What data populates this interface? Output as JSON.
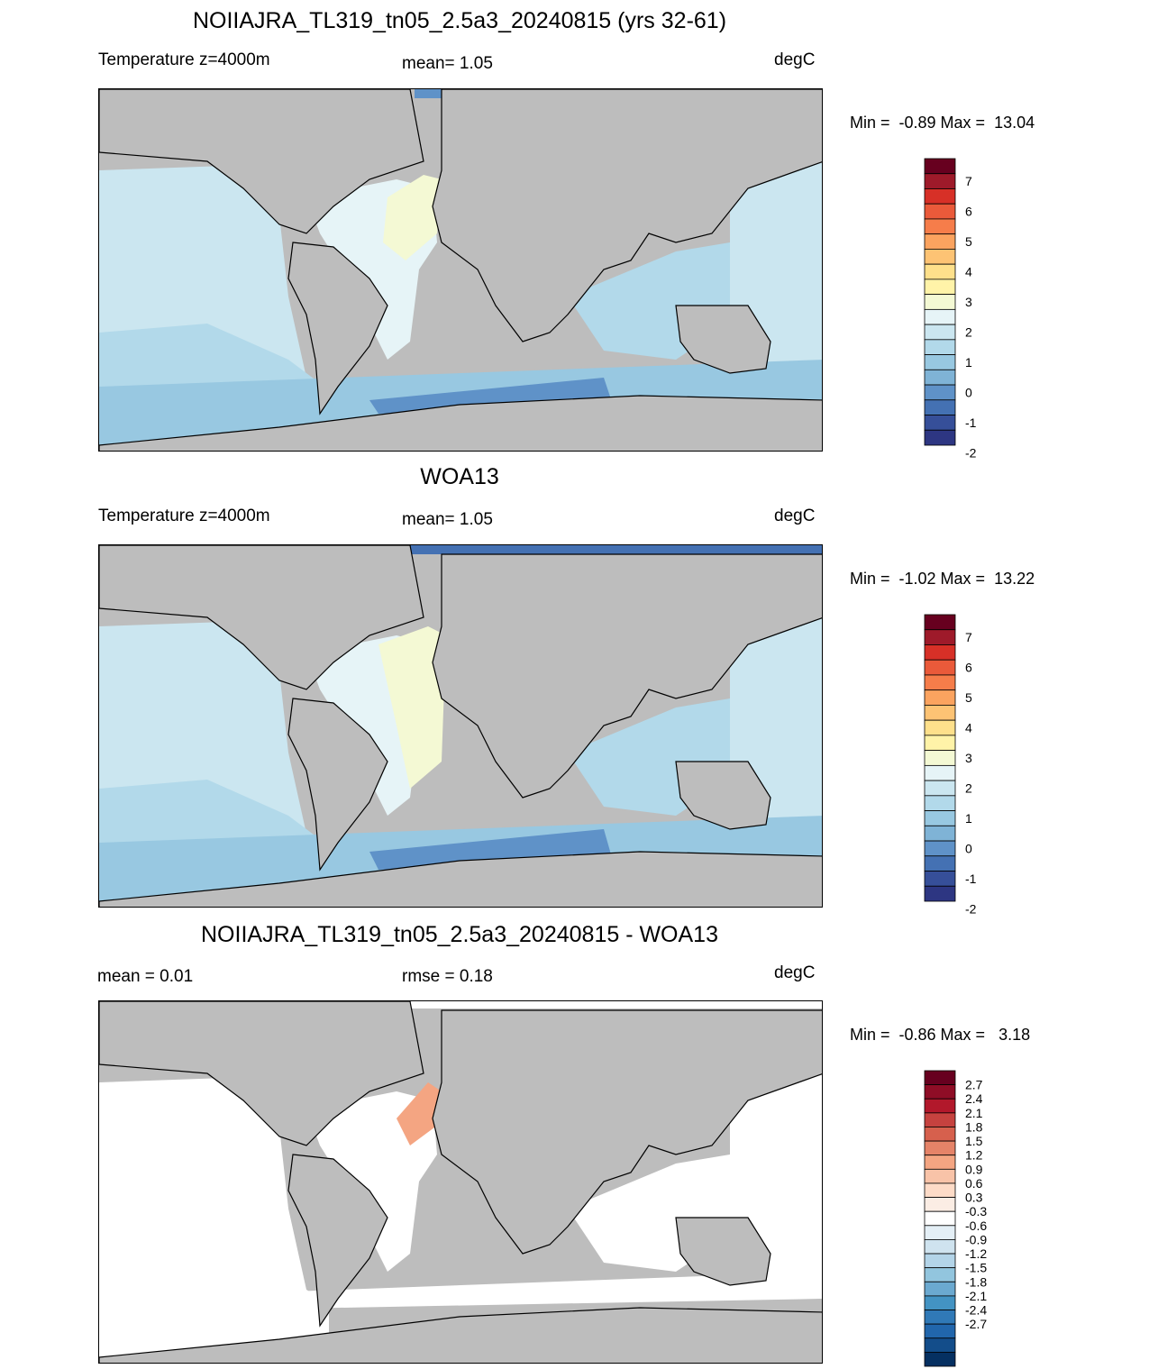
{
  "panels": [
    {
      "title": "NOIIAJRA_TL319_tn05_2.5a3_20240815 (yrs 32-61)",
      "left_label": "Temperature z=4000m",
      "center_label": "mean=   1.05",
      "units": "degC",
      "minmax": "Min =  -0.89 Max =  13.04",
      "colorbar": {
        "labels": [
          "7",
          "6",
          "5",
          "4",
          "3",
          "2",
          "1",
          "0",
          "-1",
          "-2"
        ],
        "colors": [
          "#67001f",
          "#9e1a2a",
          "#d73027",
          "#ea5a3a",
          "#f67d4a",
          "#fba35f",
          "#fdc374",
          "#fee08b",
          "#fff3a8",
          "#f4f9d4",
          "#e6f4f7",
          "#cbe6f0",
          "#b2d9ea",
          "#98c8e1",
          "#7fb3d6",
          "#5f92c8",
          "#4471b3",
          "#364f99",
          "#2d3682"
        ]
      }
    },
    {
      "title": "WOA13",
      "left_label": "Temperature z=4000m",
      "center_label": "mean=   1.05",
      "units": "degC",
      "minmax": "Min =  -1.02 Max =  13.22",
      "colorbar": {
        "labels": [
          "7",
          "6",
          "5",
          "4",
          "3",
          "2",
          "1",
          "0",
          "-1",
          "-2"
        ],
        "colors": [
          "#67001f",
          "#9e1a2a",
          "#d73027",
          "#ea5a3a",
          "#f67d4a",
          "#fba35f",
          "#fdc374",
          "#fee08b",
          "#fff3a8",
          "#f4f9d4",
          "#e6f4f7",
          "#cbe6f0",
          "#b2d9ea",
          "#98c8e1",
          "#7fb3d6",
          "#5f92c8",
          "#4471b3",
          "#364f99",
          "#2d3682"
        ]
      }
    },
    {
      "title": "NOIIAJRA_TL319_tn05_2.5a3_20240815 - WOA13",
      "left_label": "mean =   0.01",
      "center_label": "rmse =   0.18",
      "units": "degC",
      "minmax": "Min =  -0.86 Max =   3.18",
      "colorbar": {
        "labels": [
          "2.7",
          "2.4",
          "2.1",
          "1.8",
          "1.5",
          "1.2",
          "0.9",
          "0.6",
          "0.3",
          "-0.3",
          "-0.6",
          "-0.9",
          "-1.2",
          "-1.5",
          "-1.8",
          "-2.1",
          "-2.4",
          "-2.7"
        ],
        "colors": [
          "#67001f",
          "#8f0d26",
          "#b2182b",
          "#c6423f",
          "#d6604d",
          "#e58368",
          "#f4a582",
          "#f8c3a8",
          "#fddbc7",
          "#fbede4",
          "#ffffff",
          "#e4eff6",
          "#cfe3ef",
          "#b3d4e8",
          "#92c5de",
          "#6ba9d0",
          "#4393c3",
          "#3079b7",
          "#2166ac",
          "#134d8a",
          "#053061"
        ]
      }
    }
  ]
}
